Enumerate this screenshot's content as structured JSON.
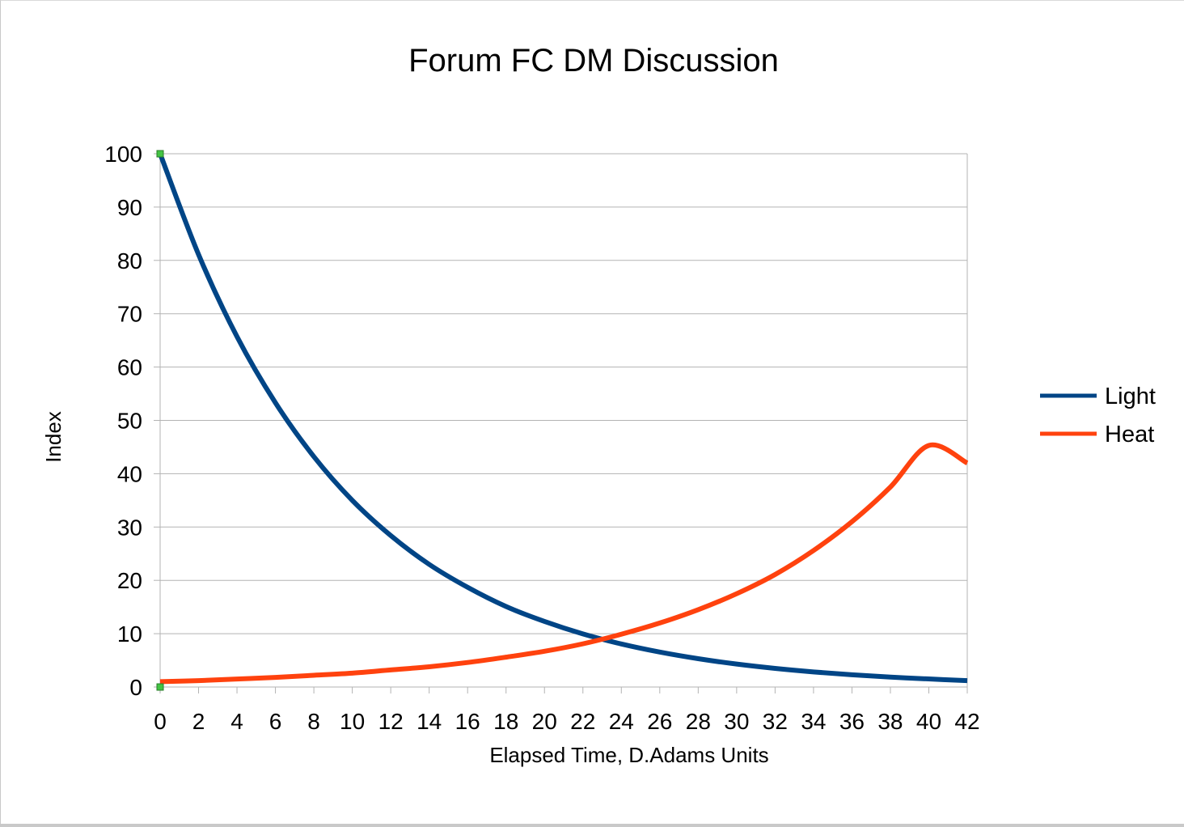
{
  "chart_data": {
    "type": "line",
    "title": "Forum FC DM Discussion",
    "xlabel": "Elapsed Time, D.Adams Units",
    "ylabel": "Index",
    "xlim": [
      0,
      42
    ],
    "ylim": [
      0,
      100
    ],
    "x_ticks": [
      "0",
      "2",
      "4",
      "6",
      "8",
      "10",
      "12",
      "14",
      "16",
      "18",
      "20",
      "22",
      "24",
      "26",
      "28",
      "30",
      "32",
      "34",
      "36",
      "38",
      "40",
      "42"
    ],
    "y_ticks": [
      "0",
      "10",
      "20",
      "30",
      "40",
      "50",
      "60",
      "70",
      "80",
      "90",
      "100"
    ],
    "grid": "horizontal",
    "legend_position": "right",
    "x": [
      0,
      2,
      4,
      6,
      8,
      10,
      12,
      14,
      16,
      18,
      20,
      22,
      24,
      26,
      28,
      30,
      32,
      34,
      36,
      38,
      40,
      42
    ],
    "series": [
      {
        "name": "Light",
        "color": "#004586",
        "values": [
          100,
          81.1,
          65.7,
          53.3,
          43.2,
          35.0,
          28.4,
          23.0,
          18.7,
          15.1,
          12.3,
          9.96,
          8.07,
          6.55,
          5.31,
          4.3,
          3.49,
          2.83,
          2.29,
          1.86,
          1.51,
          1.2
        ]
      },
      {
        "name": "Heat",
        "color": "#ff420e",
        "values": [
          1.0,
          1.2,
          1.5,
          1.8,
          2.2,
          2.6,
          3.2,
          3.8,
          4.6,
          5.6,
          6.7,
          8.1,
          9.9,
          12.0,
          14.5,
          17.5,
          21.1,
          25.6,
          31.0,
          37.5,
          45.3,
          42.0
        ]
      }
    ]
  }
}
